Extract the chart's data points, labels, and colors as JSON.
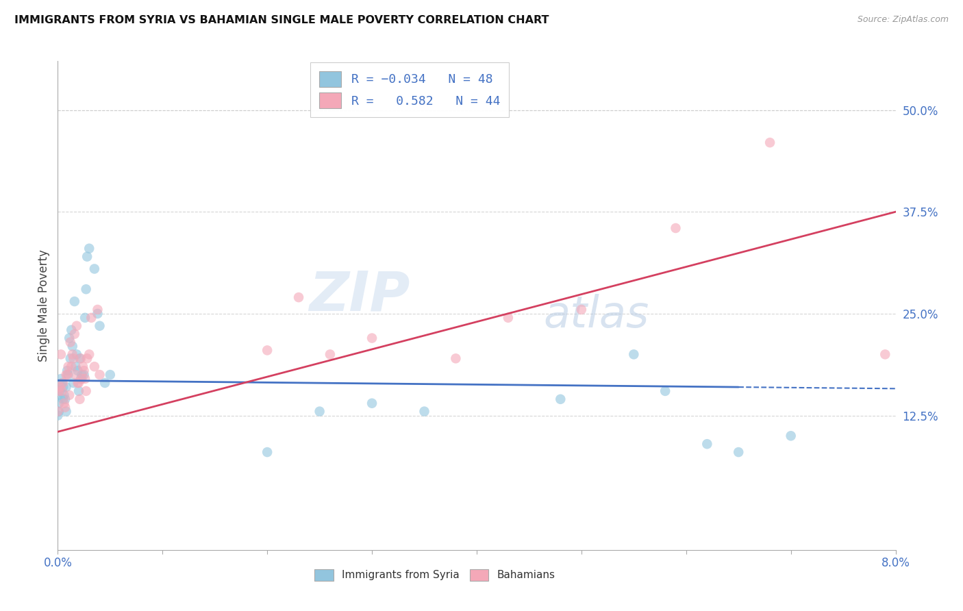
{
  "title": "IMMIGRANTS FROM SYRIA VS BAHAMIAN SINGLE MALE POVERTY CORRELATION CHART",
  "source": "Source: ZipAtlas.com",
  "ylabel": "Single Male Poverty",
  "right_yticks": [
    "50.0%",
    "37.5%",
    "25.0%",
    "12.5%"
  ],
  "right_ytick_vals": [
    0.5,
    0.375,
    0.25,
    0.125
  ],
  "color_blue": "#92c5de",
  "color_pink": "#f4a8b8",
  "color_blue_line": "#4472c4",
  "color_pink_line": "#d44060",
  "color_text_blue": "#4472c4",
  "watermark_zip": "ZIP",
  "watermark_atlas": "atlas",
  "xlim": [
    0.0,
    0.08
  ],
  "ylim": [
    -0.04,
    0.56
  ],
  "syria_x": [
    0.0002,
    0.0003,
    0.0005,
    0.0007,
    0.0008,
    0.001,
    0.0012,
    0.0014,
    0.0015,
    0.0017,
    0.0018,
    0.002,
    0.0022,
    0.0025,
    0.0027,
    0.0028,
    0.003,
    0.0035,
    0.0038,
    0.004,
    0.0,
    0.0001,
    0.0004,
    0.0006,
    0.0009,
    0.0011,
    0.0013,
    0.0016,
    0.0019,
    0.0021,
    0.0023,
    0.0026,
    0.0,
    0.0001,
    0.0005,
    0.0008,
    0.0045,
    0.005,
    0.055,
    0.058,
    0.062,
    0.065,
    0.07,
    0.048,
    0.035,
    0.03,
    0.025,
    0.02
  ],
  "syria_y": [
    0.155,
    0.17,
    0.16,
    0.145,
    0.13,
    0.175,
    0.195,
    0.21,
    0.165,
    0.185,
    0.2,
    0.155,
    0.17,
    0.175,
    0.28,
    0.32,
    0.33,
    0.305,
    0.25,
    0.235,
    0.15,
    0.14,
    0.165,
    0.15,
    0.18,
    0.22,
    0.23,
    0.265,
    0.18,
    0.195,
    0.175,
    0.245,
    0.125,
    0.13,
    0.145,
    0.16,
    0.165,
    0.175,
    0.2,
    0.155,
    0.09,
    0.08,
    0.1,
    0.145,
    0.13,
    0.14,
    0.13,
    0.08
  ],
  "bahamas_x": [
    0.0001,
    0.0003,
    0.0005,
    0.0007,
    0.0009,
    0.0011,
    0.0013,
    0.0015,
    0.0017,
    0.0019,
    0.0021,
    0.0023,
    0.0025,
    0.0027,
    0.003,
    0.0032,
    0.0035,
    0.0038,
    0.004,
    0.0,
    0.0002,
    0.0004,
    0.0006,
    0.0008,
    0.001,
    0.0012,
    0.0014,
    0.0016,
    0.0018,
    0.002,
    0.0022,
    0.0024,
    0.0026,
    0.0028,
    0.02,
    0.023,
    0.026,
    0.03,
    0.038,
    0.043,
    0.05,
    0.059,
    0.068,
    0.079
  ],
  "bahamas_y": [
    0.155,
    0.2,
    0.165,
    0.135,
    0.175,
    0.15,
    0.185,
    0.195,
    0.175,
    0.165,
    0.145,
    0.17,
    0.18,
    0.155,
    0.2,
    0.245,
    0.185,
    0.255,
    0.175,
    0.13,
    0.16,
    0.155,
    0.14,
    0.175,
    0.185,
    0.215,
    0.2,
    0.225,
    0.235,
    0.165,
    0.195,
    0.185,
    0.17,
    0.195,
    0.205,
    0.27,
    0.2,
    0.22,
    0.195,
    0.245,
    0.255,
    0.355,
    0.46,
    0.2
  ],
  "syria_R": -0.034,
  "syria_N": 48,
  "bahamas_R": 0.582,
  "bahamas_N": 44,
  "background_color": "#ffffff",
  "grid_color": "#cccccc",
  "marker_size": 110
}
